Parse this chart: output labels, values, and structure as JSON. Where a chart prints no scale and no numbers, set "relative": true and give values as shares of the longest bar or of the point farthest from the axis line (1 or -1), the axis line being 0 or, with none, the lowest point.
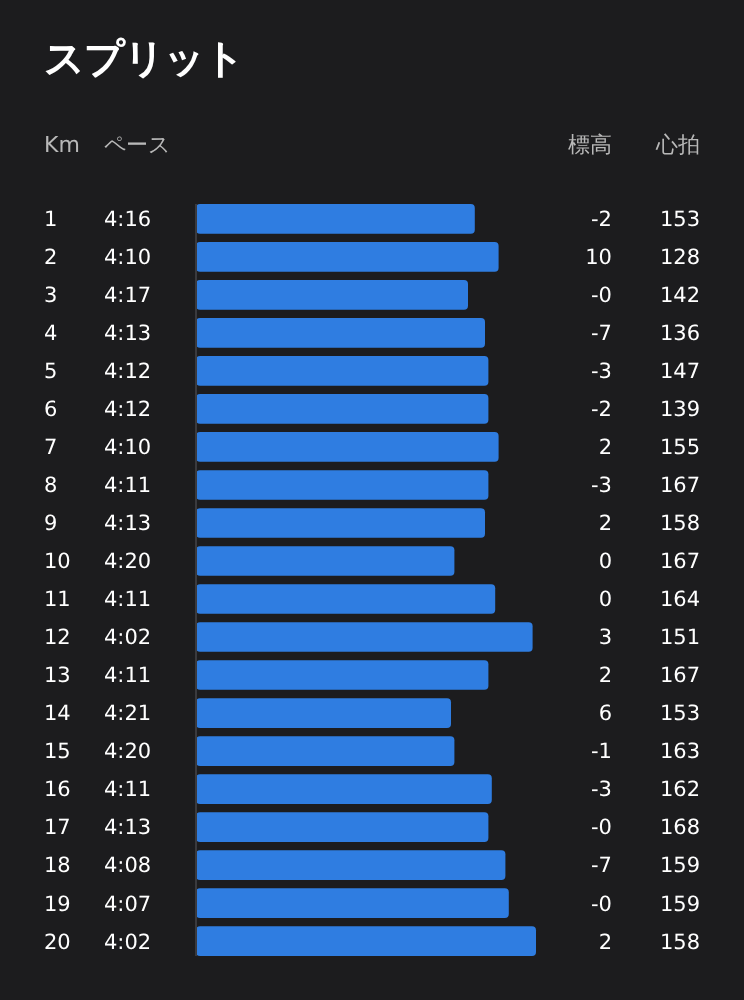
{
  "chart_data": [
    {
      "type": "bar",
      "orientation": "horizontal",
      "relative": true,
      "title": "スプリット",
      "ylabel": "Km",
      "color": "#2f7de1",
      "categories": [
        "1",
        "2",
        "3",
        "4",
        "5",
        "6",
        "7",
        "8",
        "9",
        "10",
        "11",
        "12",
        "13",
        "14",
        "15",
        "16",
        "17",
        "18",
        "19",
        "20"
      ],
      "values": [
        0.82,
        0.89,
        0.8,
        0.85,
        0.86,
        0.86,
        0.89,
        0.86,
        0.85,
        0.76,
        0.88,
        0.99,
        0.86,
        0.75,
        0.76,
        0.87,
        0.86,
        0.91,
        0.92,
        1
      ]
    },
    {
      "type": "other",
      "title": "ペース",
      "data_labels": true,
      "categories": [
        null,
        null,
        null,
        null,
        null,
        null,
        null,
        null,
        null,
        null,
        null,
        null,
        null,
        null,
        null,
        null,
        null,
        null,
        null,
        null
      ],
      "values": [
        4.267,
        4.167,
        4.283,
        4.217,
        4.2,
        4.2,
        4.167,
        4.183,
        4.217,
        4.333,
        4.183,
        4.033,
        4.183,
        4.35,
        4.333,
        4.183,
        4.217,
        4.133,
        4.117,
        4.033
      ],
      "value_labels": [
        "4:16",
        "4:10",
        "4:17",
        "4:13",
        "4:12",
        "4:12",
        "4:10",
        "4:11",
        "4:13",
        "4:20",
        "4:11",
        "4:02",
        "4:11",
        "4:21",
        "4:20",
        "4:11",
        "4:13",
        "4:08",
        "4:07",
        "4:02"
      ]
    },
    {
      "type": "other",
      "title": "標高",
      "data_labels": true,
      "categories": [
        null,
        null,
        null,
        null,
        null,
        null,
        null,
        null,
        null,
        null,
        null,
        null,
        null,
        null,
        null,
        null,
        null,
        null,
        null,
        null
      ],
      "values": [
        -2,
        10,
        0,
        -7,
        -3,
        -2,
        2,
        -3,
        2,
        0,
        0,
        3,
        2,
        6,
        -1,
        -3,
        0,
        -7,
        0,
        2
      ],
      "value_labels": [
        "-2",
        "10",
        "-0",
        "-7",
        "-3",
        "-2",
        "2",
        "-3",
        "2",
        "0",
        "0",
        "3",
        "2",
        "6",
        "-1",
        "-3",
        "-0",
        "-7",
        "-0",
        "2"
      ]
    },
    {
      "type": "other",
      "title": "心拍",
      "data_labels": true,
      "categories": [
        null,
        null,
        null,
        null,
        null,
        null,
        null,
        null,
        null,
        null,
        null,
        null,
        null,
        null,
        null,
        null,
        null,
        null,
        null,
        null
      ],
      "values": [
        153,
        128,
        142,
        136,
        147,
        139,
        155,
        167,
        158,
        167,
        164,
        151,
        167,
        153,
        163,
        162,
        168,
        159,
        159,
        158
      ]
    }
  ]
}
